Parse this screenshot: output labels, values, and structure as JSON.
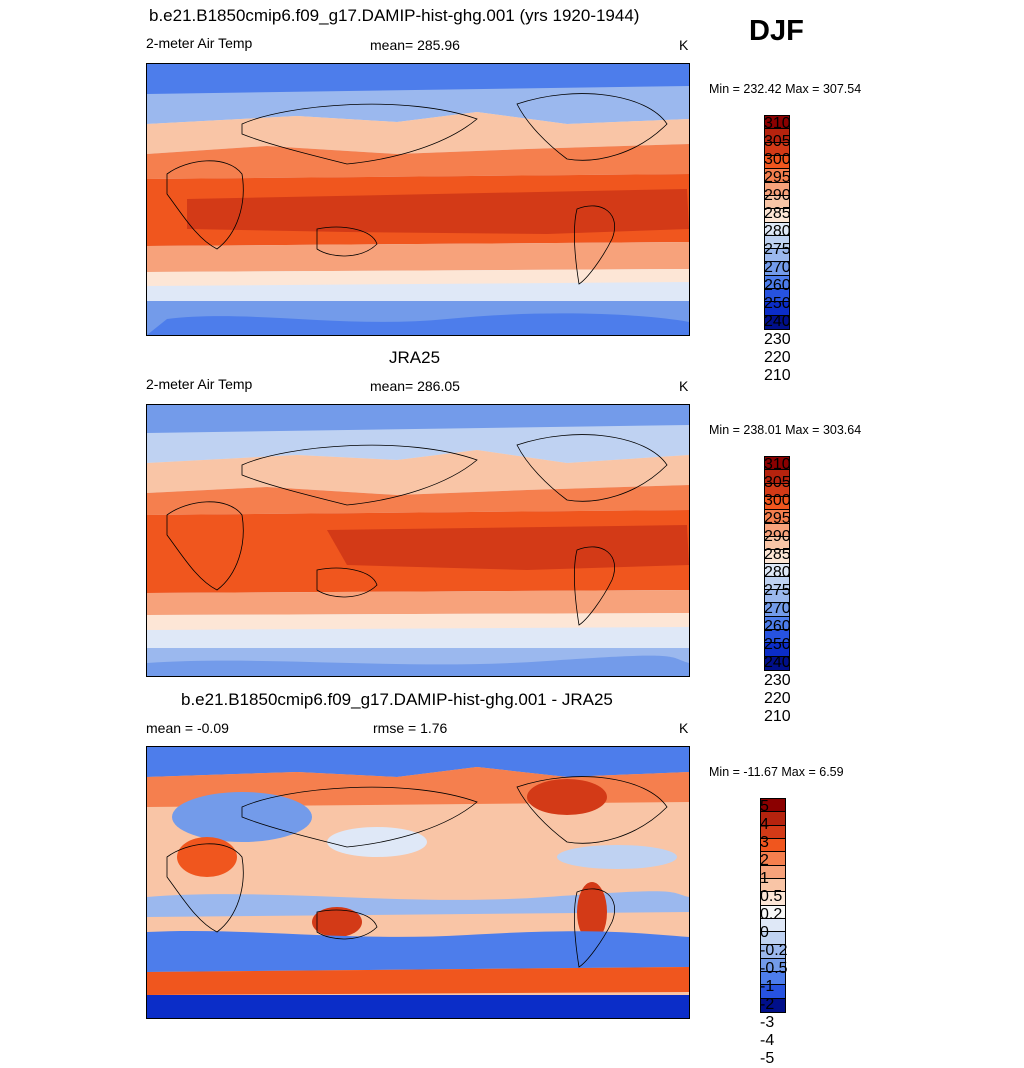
{
  "season": "DJF",
  "panels": [
    {
      "title": "b.e21.B1850cmip6.f09_g17.DAMIP-hist-ghg.001 (yrs 1920-1944)",
      "left_label": "2-meter Air Temp",
      "center_label": "mean= 285.96",
      "units": "K",
      "minmax": "Min = 232.42 Max = 307.54",
      "colorbar": {
        "labels": [
          "310",
          "305",
          "300",
          "295",
          "290",
          "285",
          "280",
          "275",
          "270",
          "260",
          "250",
          "240",
          "230",
          "220",
          "210"
        ],
        "colors": [
          "#8b0000",
          "#b5230e",
          "#d33a17",
          "#f0561e",
          "#f57f4e",
          "#f7a27b",
          "#f9c5a6",
          "#fde6d6",
          "#dfe8f7",
          "#bfd2f2",
          "#9bb8ee",
          "#739bea",
          "#4d7deb",
          "#2753e0",
          "#0b2dc8",
          "#000f8a"
        ]
      }
    },
    {
      "title": "JRA25",
      "left_label": "2-meter Air Temp",
      "center_label": "mean= 286.05",
      "units": "K",
      "minmax": "Min = 238.01 Max = 303.64",
      "colorbar": {
        "labels": [
          "310",
          "305",
          "300",
          "295",
          "290",
          "285",
          "280",
          "275",
          "270",
          "260",
          "250",
          "240",
          "230",
          "220",
          "210"
        ],
        "colors": [
          "#8b0000",
          "#b5230e",
          "#d33a17",
          "#f0561e",
          "#f57f4e",
          "#f7a27b",
          "#f9c5a6",
          "#fde6d6",
          "#dfe8f7",
          "#bfd2f2",
          "#9bb8ee",
          "#739bea",
          "#4d7deb",
          "#2753e0",
          "#0b2dc8",
          "#000f8a"
        ]
      }
    },
    {
      "title": "b.e21.B1850cmip6.f09_g17.DAMIP-hist-ghg.001 - JRA25",
      "left_label": "mean =  -0.09",
      "center_label": "rmse =   1.76",
      "units": "K",
      "minmax": "Min = -11.67 Max =   6.59",
      "colorbar": {
        "labels": [
          "5",
          "4",
          "3",
          "2",
          "1",
          "0.5",
          "0.2",
          "0",
          "-0.2",
          "-0.5",
          "-1",
          "-2",
          "-3",
          "-4",
          "-5"
        ],
        "colors": [
          "#8b0000",
          "#b5230e",
          "#d33a17",
          "#f0561e",
          "#f57f4e",
          "#f7a27b",
          "#f9c5a6",
          "#fde6d6",
          "#f8f8f8",
          "#dfe8f7",
          "#bfd2f2",
          "#9bb8ee",
          "#739bea",
          "#4d7deb",
          "#2753e0",
          "#000f8a"
        ]
      }
    }
  ],
  "colors": {
    "warm_band": "#d33a17",
    "cold_polar": "#4d7deb",
    "land_outline": "#000000"
  }
}
